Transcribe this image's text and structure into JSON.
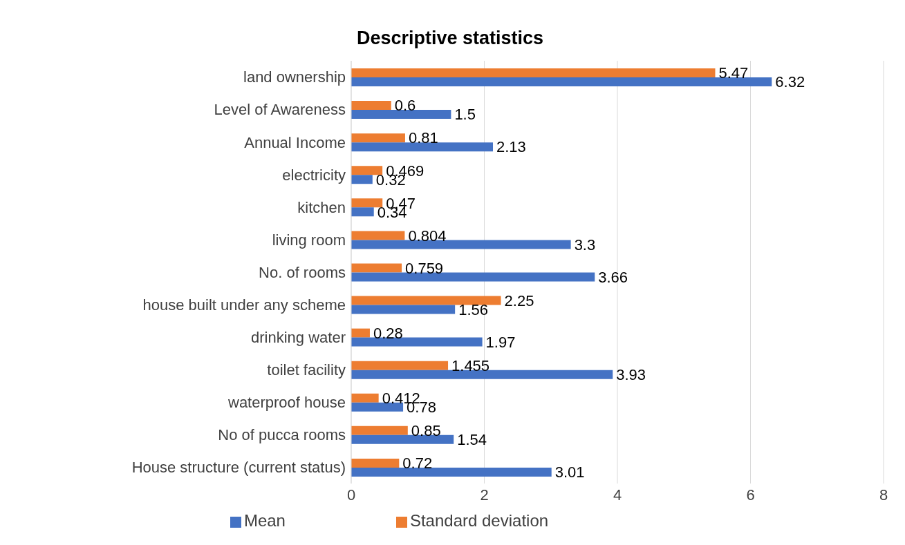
{
  "chart_data": {
    "type": "bar",
    "orientation": "horizontal",
    "title": "Descriptive statistics",
    "categories": [
      "land ownership",
      "Level of Awareness",
      "Annual Income ",
      "electricity ",
      "kitchen",
      "living room",
      "No. of rooms",
      "house built under any scheme",
      "drinking water",
      "toilet facility",
      "waterproof house",
      "No of pucca rooms",
      "House structure (current status) "
    ],
    "series": [
      {
        "name": "Standard deviation",
        "color": "#ed7d31",
        "values": [
          5.47,
          0.6,
          0.81,
          0.469,
          0.47,
          0.804,
          0.759,
          2.25,
          0.28,
          1.455,
          0.412,
          0.85,
          0.72
        ]
      },
      {
        "name": "Mean",
        "color": "#4472c4",
        "values": [
          6.32,
          1.5,
          2.13,
          0.32,
          0.34,
          3.3,
          3.66,
          1.56,
          1.97,
          3.93,
          0.78,
          1.54,
          3.01
        ]
      }
    ],
    "xlim": [
      0,
      8
    ],
    "xticks": [
      0,
      2,
      4,
      6,
      8
    ],
    "grid": "x",
    "legend": "bottom",
    "data_labels": true
  }
}
